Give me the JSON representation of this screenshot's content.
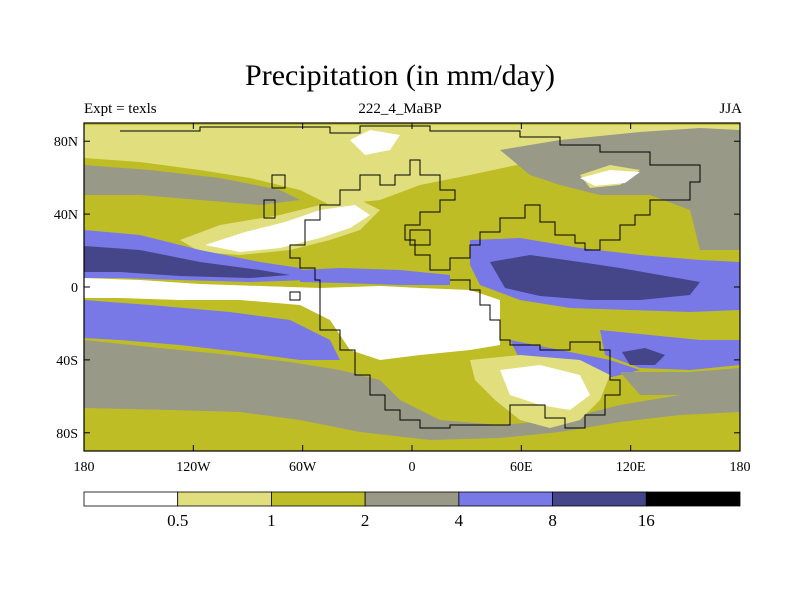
{
  "header": {
    "title": "Precipitation (in mm/day)",
    "left_label": "Expt = texls",
    "center_label": "222_4_MaBP",
    "right_label": "JJA"
  },
  "map": {
    "x_ticks": [
      "180",
      "120W",
      "60W",
      "0",
      "60E",
      "120E",
      "180"
    ],
    "x_tick_lons": [
      -180,
      -120,
      -60,
      0,
      60,
      120,
      180
    ],
    "y_ticks": [
      "80N",
      "40N",
      "0",
      "40S",
      "80S"
    ],
    "y_tick_lats": [
      80,
      40,
      0,
      -40,
      -80
    ],
    "lon_range": [
      -180,
      180
    ],
    "lat_range": [
      -90,
      90
    ]
  },
  "colorbar": {
    "labels": [
      "0.5",
      "1",
      "2",
      "4",
      "8",
      "16"
    ],
    "colors": [
      "#ffffff",
      "#e1df7d",
      "#bfbd26",
      "#999988",
      "#7878e6",
      "#45458a",
      "#000000"
    ]
  },
  "colors": {
    "white": "#ffffff",
    "pale_yellow": "#e1df7d",
    "olive": "#bfbd26",
    "gray": "#999988",
    "blue": "#7878e6",
    "dark_blue": "#45458a"
  }
}
